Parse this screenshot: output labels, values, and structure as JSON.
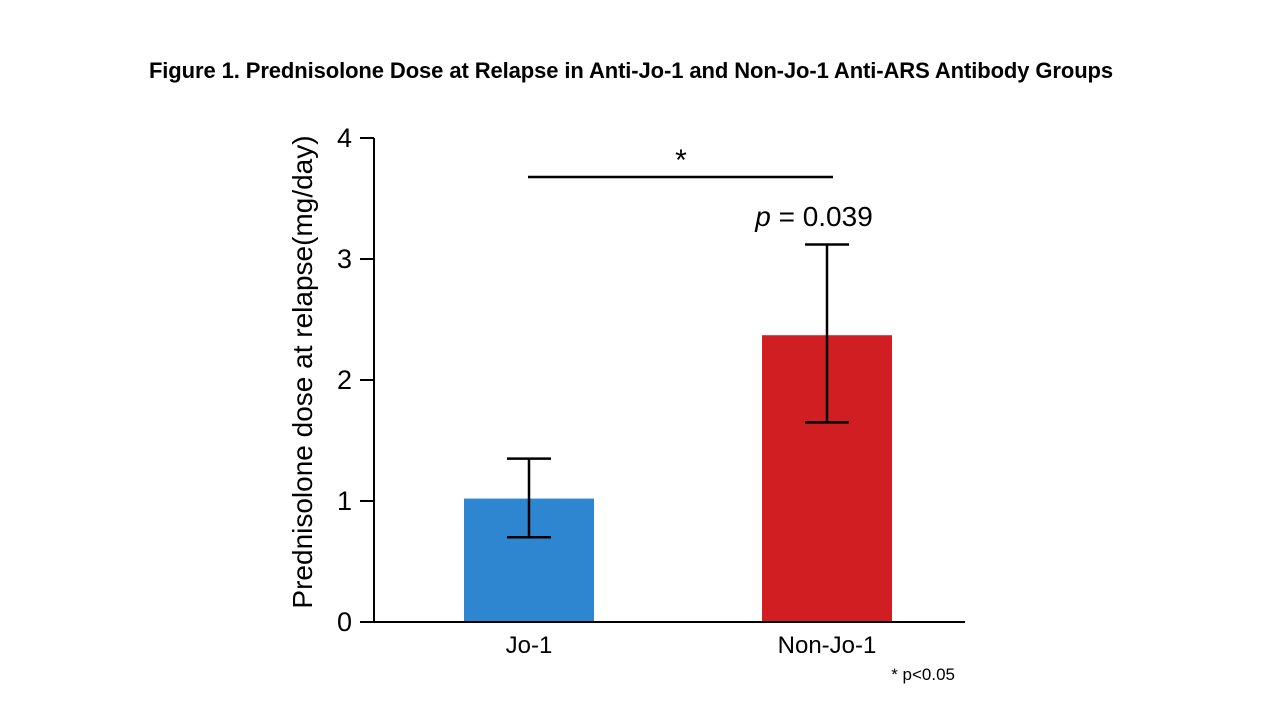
{
  "figure_title": "Figure 1. Prednisolone Dose at Relapse in Anti-Jo-1 and Non-Jo-1 Anti-ARS Antibody Groups",
  "chart_data": {
    "type": "bar",
    "title": "Figure 1. Prednisolone Dose at Relapse in Anti-Jo-1 and Non-Jo-1 Anti-ARS Antibody Groups",
    "xlabel": "",
    "ylabel": "Prednisolone dose at relapse(mg/day)",
    "ylim": [
      0,
      4
    ],
    "yticks": [
      0,
      1,
      2,
      3,
      4
    ],
    "grid": false,
    "categories": [
      "Jo-1",
      "Non-Jo-1"
    ],
    "values": [
      1.02,
      2.37
    ],
    "error_upper": [
      1.35,
      3.12
    ],
    "error_lower": [
      0.7,
      1.65
    ],
    "colors": [
      "#2e86d1",
      "#d01e22"
    ],
    "significance": {
      "between": [
        "Jo-1",
        "Non-Jo-1"
      ],
      "marker": "*",
      "p_label_italic": "p",
      "p_label_rest": " = 0.039"
    },
    "footnote": "* p<0.05"
  }
}
